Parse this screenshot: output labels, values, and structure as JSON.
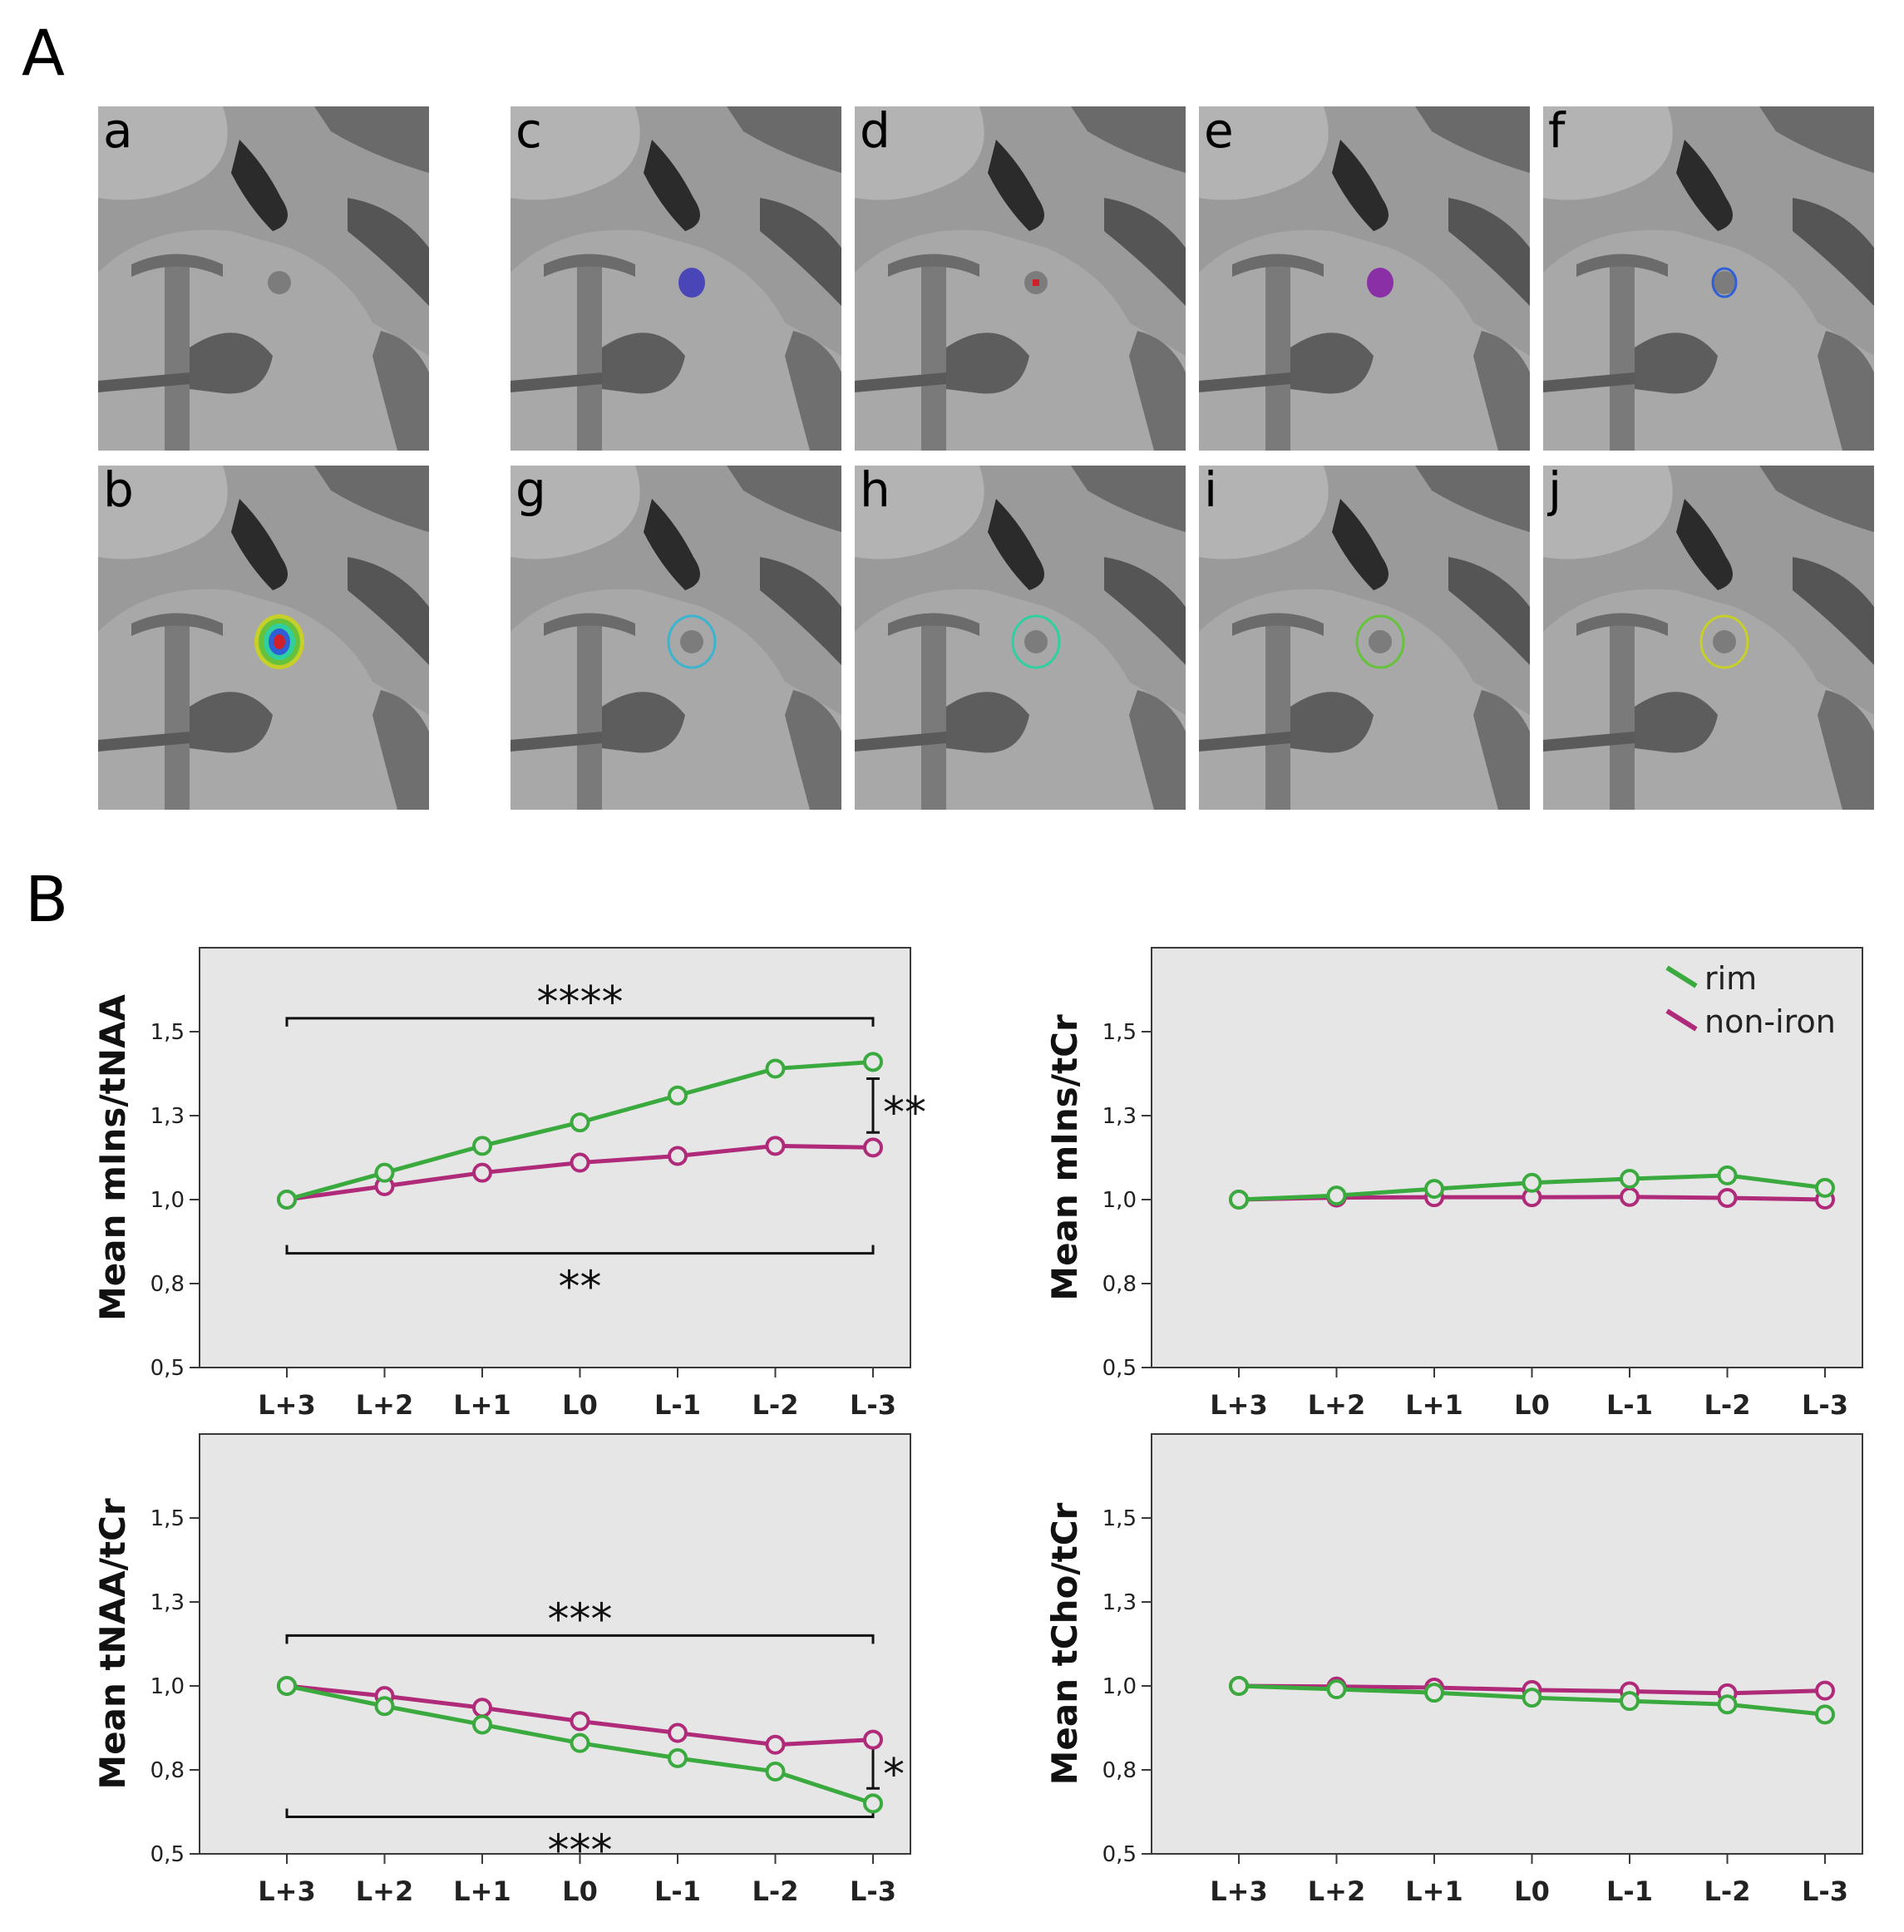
{
  "figure": {
    "panel_A_label": "A",
    "panel_B_label": "B",
    "mri_panels": [
      {
        "label": "a",
        "overlay": "none",
        "color": ""
      },
      {
        "label": "b",
        "overlay": "heatmap",
        "color": "#1f77b4"
      },
      {
        "label": "c",
        "overlay": "fill",
        "color": "#4a46b8"
      },
      {
        "label": "d",
        "overlay": "dot",
        "color": "#d0202a"
      },
      {
        "label": "e",
        "overlay": "fill",
        "color": "#8a2fa6"
      },
      {
        "label": "f",
        "overlay": "ring",
        "color": "#2f5fd6"
      },
      {
        "label": "g",
        "overlay": "ring",
        "color": "#3bb4cf"
      },
      {
        "label": "h",
        "overlay": "ring",
        "color": "#2fcfa0"
      },
      {
        "label": "i",
        "overlay": "ring",
        "color": "#66c23a"
      },
      {
        "label": "j",
        "overlay": "ring",
        "color": "#c7d02a"
      }
    ]
  },
  "legend": {
    "items": [
      {
        "label": "rim",
        "color": "#3aaa3f"
      },
      {
        "label": "non-iron",
        "color": "#b02a7a"
      }
    ]
  },
  "chart_data": [
    {
      "type": "line",
      "ylabel": "Mean mIns/tNAA",
      "categories": [
        "L+3",
        "L+2",
        "L+1",
        "L0",
        "L-1",
        "L-2",
        "L-3"
      ],
      "yticks": [
        "0,5",
        "0,8",
        "1,0",
        "1,3",
        "1,5"
      ],
      "yticks_values": [
        0.5,
        0.75,
        1.0,
        1.25,
        1.5
      ],
      "ylim": [
        0.5,
        1.75
      ],
      "series": [
        {
          "name": "rim",
          "color": "#3aaa3f",
          "values": [
            1.0,
            1.08,
            1.16,
            1.23,
            1.31,
            1.39,
            1.41
          ]
        },
        {
          "name": "non-iron",
          "color": "#b02a7a",
          "values": [
            1.0,
            1.04,
            1.08,
            1.11,
            1.13,
            1.16,
            1.155
          ]
        }
      ],
      "annotations": [
        {
          "text": "****",
          "type": "bracket-top",
          "y": 1.54
        },
        {
          "text": "**",
          "type": "bracket-bottom",
          "y": 0.84
        },
        {
          "text": "**",
          "type": "vertical",
          "y1": 1.36,
          "y2": 1.2
        }
      ]
    },
    {
      "type": "line",
      "ylabel": "Mean mIns/tCr",
      "categories": [
        "L+3",
        "L+2",
        "L+1",
        "L0",
        "L-1",
        "L-2",
        "L-3"
      ],
      "yticks": [
        "0,5",
        "0,8",
        "1,0",
        "1,3",
        "1,5"
      ],
      "yticks_values": [
        0.5,
        0.75,
        1.0,
        1.25,
        1.5
      ],
      "ylim": [
        0.5,
        1.75
      ],
      "series": [
        {
          "name": "rim",
          "color": "#3aaa3f",
          "values": [
            1.0,
            1.012,
            1.032,
            1.05,
            1.062,
            1.072,
            1.035
          ]
        },
        {
          "name": "non-iron",
          "color": "#b02a7a",
          "values": [
            1.0,
            1.006,
            1.007,
            1.007,
            1.008,
            1.005,
            1.0
          ]
        }
      ],
      "annotations": []
    },
    {
      "type": "line",
      "ylabel": "Mean tNAA/tCr",
      "categories": [
        "L+3",
        "L+2",
        "L+1",
        "L0",
        "L-1",
        "L-2",
        "L-3"
      ],
      "yticks": [
        "0,5",
        "0,8",
        "1,0",
        "1,3",
        "1,5"
      ],
      "yticks_values": [
        0.5,
        0.75,
        1.0,
        1.25,
        1.5
      ],
      "ylim": [
        0.5,
        1.75
      ],
      "series": [
        {
          "name": "rim",
          "color": "#3aaa3f",
          "values": [
            1.0,
            0.94,
            0.885,
            0.83,
            0.785,
            0.745,
            0.65
          ]
        },
        {
          "name": "non-iron",
          "color": "#b02a7a",
          "values": [
            1.0,
            0.97,
            0.935,
            0.895,
            0.86,
            0.825,
            0.84
          ]
        }
      ],
      "annotations": [
        {
          "text": "***",
          "type": "bracket-top",
          "y": 1.15
        },
        {
          "text": "***",
          "type": "bracket-bottom",
          "y": 0.61
        },
        {
          "text": "*",
          "type": "vertical",
          "y1": 0.82,
          "y2": 0.695
        }
      ]
    },
    {
      "type": "line",
      "ylabel": "Mean tCho/tCr",
      "categories": [
        "L+3",
        "L+2",
        "L+1",
        "L0",
        "L-1",
        "L-2",
        "L-3"
      ],
      "yticks": [
        "0,5",
        "0,8",
        "1,0",
        "1,3",
        "1,5"
      ],
      "yticks_values": [
        0.5,
        0.75,
        1.0,
        1.25,
        1.5
      ],
      "ylim": [
        0.5,
        1.75
      ],
      "series": [
        {
          "name": "rim",
          "color": "#3aaa3f",
          "values": [
            1.0,
            0.99,
            0.98,
            0.965,
            0.955,
            0.945,
            0.915
          ]
        },
        {
          "name": "non-iron",
          "color": "#b02a7a",
          "values": [
            1.0,
            0.998,
            0.995,
            0.988,
            0.984,
            0.978,
            0.986
          ]
        }
      ],
      "annotations": []
    }
  ]
}
